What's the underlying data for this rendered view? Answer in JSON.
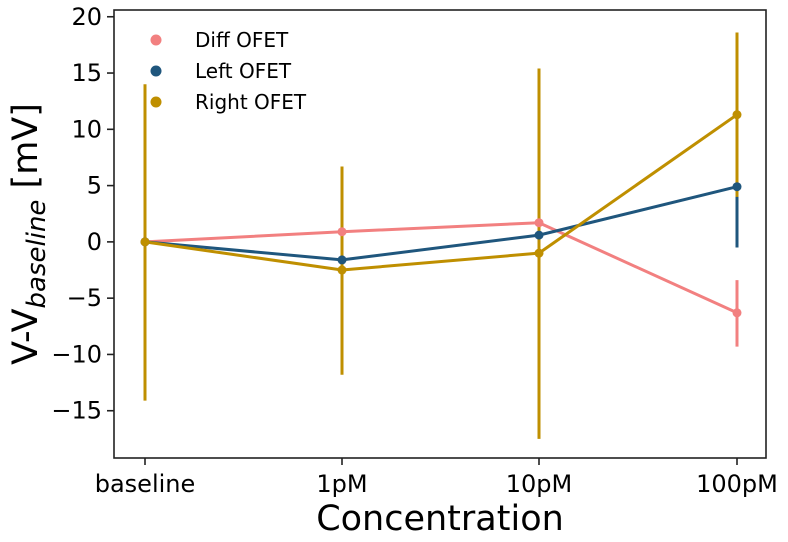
{
  "chart_data": {
    "type": "line",
    "categories": [
      "baseline",
      "1pM",
      "10pM",
      "100pM"
    ],
    "xlabel": "Concentration",
    "ylabel": {
      "main": "V-V",
      "subscript": "baseline",
      "unit": " [mV]"
    },
    "ylim": [
      -19.2,
      20.6
    ],
    "yticks": [
      -15,
      -10,
      -5,
      0,
      5,
      10,
      15,
      20
    ],
    "legend": {
      "position": "top-left"
    },
    "grid": false,
    "series": [
      {
        "name": "Diff OFET",
        "color": "#f28080",
        "values": [
          0.0,
          0.9,
          1.7,
          -6.3
        ],
        "err_low": [
          0.0,
          0.9,
          1.7,
          -9.3
        ],
        "err_high": [
          0.0,
          0.9,
          1.7,
          -3.4
        ]
      },
      {
        "name": "Left OFET",
        "color": "#1f567d",
        "values": [
          0.0,
          -1.6,
          0.6,
          4.9
        ],
        "err_low": [
          0.0,
          -1.6,
          0.6,
          -0.5
        ],
        "err_high": [
          0.0,
          -1.6,
          0.6,
          4.9
        ]
      },
      {
        "name": "Right OFET",
        "color": "#bf8f00",
        "values": [
          0.0,
          -2.5,
          -1.0,
          11.3
        ],
        "err_low": [
          -14.1,
          -11.8,
          -17.5,
          4.0
        ],
        "err_high": [
          14.0,
          6.7,
          15.4,
          18.6
        ]
      }
    ]
  }
}
